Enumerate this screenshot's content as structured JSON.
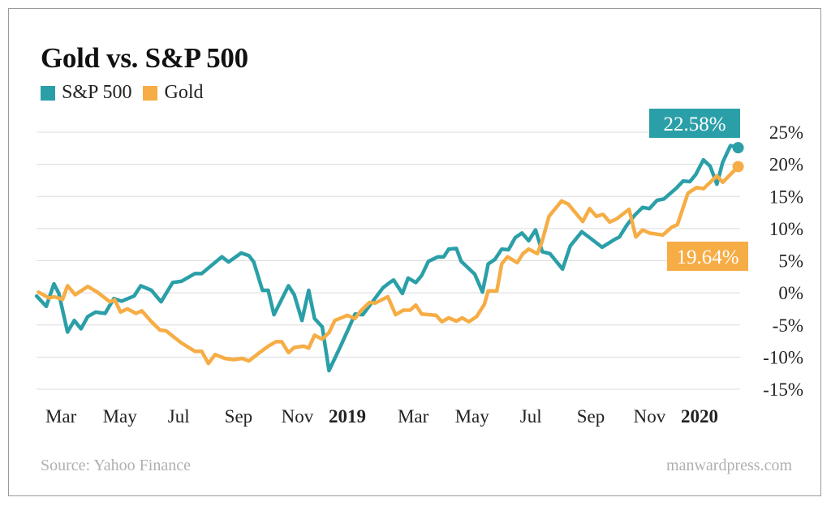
{
  "chart_data": {
    "type": "line",
    "title": "Gold vs. S&P 500",
    "xlabel": "",
    "ylabel": "",
    "ylim": [
      -15,
      25
    ],
    "yticks": [
      25,
      20,
      15,
      10,
      5,
      0,
      -5,
      -10,
      -15
    ],
    "ytick_format": "%",
    "grid": true,
    "legend": "top-left",
    "xticks": [
      {
        "date": "2018-03-01",
        "label": "Mar",
        "bold": false
      },
      {
        "date": "2018-05-01",
        "label": "May",
        "bold": false
      },
      {
        "date": "2018-07-01",
        "label": "Jul",
        "bold": false
      },
      {
        "date": "2018-09-01",
        "label": "Sep",
        "bold": false
      },
      {
        "date": "2018-11-01",
        "label": "Nov",
        "bold": false
      },
      {
        "date": "2019-01-01",
        "label": "2019",
        "bold": true
      },
      {
        "date": "2019-03-01",
        "label": "Mar",
        "bold": false
      },
      {
        "date": "2019-05-01",
        "label": "May",
        "bold": false
      },
      {
        "date": "2019-07-01",
        "label": "Jul",
        "bold": false
      },
      {
        "date": "2019-09-01",
        "label": "Sep",
        "bold": false
      },
      {
        "date": "2019-11-01",
        "label": "Nov",
        "bold": false
      },
      {
        "date": "2020-01-01",
        "label": "2020",
        "bold": true
      }
    ],
    "xlim": [
      "2018-02-13",
      "2020-02-12"
    ],
    "series": [
      {
        "name": "S&P 500",
        "color": "#2b9fa8",
        "end_label": "22.58%",
        "points": [
          [
            "2018-02-13",
            -0.5
          ],
          [
            "2018-02-23",
            -2.1
          ],
          [
            "2018-03-03",
            1.4
          ],
          [
            "2018-03-08",
            -0.1
          ],
          [
            "2018-03-17",
            -6.1
          ],
          [
            "2018-03-24",
            -4.3
          ],
          [
            "2018-03-31",
            -5.6
          ],
          [
            "2018-04-07",
            -3.7
          ],
          [
            "2018-04-15",
            -3.0
          ],
          [
            "2018-04-25",
            -3.2
          ],
          [
            "2018-05-04",
            -0.9
          ],
          [
            "2018-05-12",
            -1.3
          ],
          [
            "2018-05-25",
            -0.5
          ],
          [
            "2018-06-01",
            1.1
          ],
          [
            "2018-06-12",
            0.4
          ],
          [
            "2018-06-22",
            -1.4
          ],
          [
            "2018-07-04",
            1.6
          ],
          [
            "2018-07-13",
            1.8
          ],
          [
            "2018-07-27",
            3.0
          ],
          [
            "2018-08-03",
            3.0
          ],
          [
            "2018-08-24",
            5.6
          ],
          [
            "2018-08-31",
            4.8
          ],
          [
            "2018-09-13",
            6.2
          ],
          [
            "2018-09-21",
            5.8
          ],
          [
            "2018-09-26",
            4.8
          ],
          [
            "2018-10-05",
            0.4
          ],
          [
            "2018-10-11",
            0.4
          ],
          [
            "2018-10-17",
            -3.4
          ],
          [
            "2018-11-01",
            1.1
          ],
          [
            "2018-11-07",
            -0.3
          ],
          [
            "2018-11-15",
            -4.3
          ],
          [
            "2018-11-22",
            0.4
          ],
          [
            "2018-11-28",
            -4.0
          ],
          [
            "2018-12-06",
            -5.3
          ],
          [
            "2018-12-13",
            -12.1
          ],
          [
            "2018-12-25",
            -8.3
          ],
          [
            "2019-01-09",
            -3.3
          ],
          [
            "2019-01-17",
            -3.4
          ],
          [
            "2019-01-24",
            -2.0
          ],
          [
            "2019-02-07",
            0.8
          ],
          [
            "2019-02-14",
            1.6
          ],
          [
            "2019-02-18",
            2.0
          ],
          [
            "2019-02-27",
            -0.1
          ],
          [
            "2019-03-05",
            2.3
          ],
          [
            "2019-03-13",
            1.6
          ],
          [
            "2019-03-19",
            2.7
          ],
          [
            "2019-03-26",
            4.9
          ],
          [
            "2019-04-05",
            5.6
          ],
          [
            "2019-04-11",
            5.6
          ],
          [
            "2019-04-16",
            6.8
          ],
          [
            "2019-04-24",
            6.9
          ],
          [
            "2019-04-29",
            4.9
          ],
          [
            "2019-05-13",
            2.9
          ],
          [
            "2019-05-21",
            0.1
          ],
          [
            "2019-05-27",
            4.5
          ],
          [
            "2019-06-03",
            5.2
          ],
          [
            "2019-06-10",
            6.8
          ],
          [
            "2019-06-17",
            6.7
          ],
          [
            "2019-06-24",
            8.6
          ],
          [
            "2019-07-01",
            9.3
          ],
          [
            "2019-07-08",
            8.1
          ],
          [
            "2019-07-15",
            9.8
          ],
          [
            "2019-07-22",
            6.4
          ],
          [
            "2019-07-30",
            6.1
          ],
          [
            "2019-08-12",
            3.7
          ],
          [
            "2019-08-20",
            7.3
          ],
          [
            "2019-09-01",
            9.5
          ],
          [
            "2019-09-09",
            8.6
          ],
          [
            "2019-09-22",
            7.1
          ],
          [
            "2019-10-05",
            8.3
          ],
          [
            "2019-10-10",
            8.7
          ],
          [
            "2019-10-18",
            10.6
          ],
          [
            "2019-10-26",
            12.1
          ],
          [
            "2019-11-03",
            13.3
          ],
          [
            "2019-11-10",
            13.1
          ],
          [
            "2019-11-18",
            14.4
          ],
          [
            "2019-11-25",
            14.6
          ],
          [
            "2019-12-08",
            16.3
          ],
          [
            "2019-12-15",
            17.4
          ],
          [
            "2019-12-22",
            17.3
          ],
          [
            "2019-12-28",
            18.4
          ],
          [
            "2020-01-05",
            20.7
          ],
          [
            "2020-01-12",
            19.7
          ],
          [
            "2020-01-19",
            16.9
          ],
          [
            "2020-01-25",
            20.3
          ],
          [
            "2020-02-02",
            22.9
          ],
          [
            "2020-02-10",
            22.58
          ]
        ]
      },
      {
        "name": "Gold",
        "color": "#f6ad45",
        "end_label": "19.64%",
        "points": [
          [
            "2018-02-15",
            0.1
          ],
          [
            "2018-02-26",
            -0.8
          ],
          [
            "2018-03-03",
            -0.6
          ],
          [
            "2018-03-12",
            -1.0
          ],
          [
            "2018-03-17",
            1.1
          ],
          [
            "2018-03-25",
            -0.3
          ],
          [
            "2018-04-07",
            1.0
          ],
          [
            "2018-04-17",
            0.1
          ],
          [
            "2018-04-30",
            -1.4
          ],
          [
            "2018-05-05",
            -1.1
          ],
          [
            "2018-05-11",
            -3.0
          ],
          [
            "2018-05-18",
            -2.5
          ],
          [
            "2018-05-27",
            -3.2
          ],
          [
            "2018-06-02",
            -2.8
          ],
          [
            "2018-06-12",
            -4.5
          ],
          [
            "2018-06-21",
            -5.8
          ],
          [
            "2018-06-27",
            -5.9
          ],
          [
            "2018-07-13",
            -7.8
          ],
          [
            "2018-07-27",
            -9.1
          ],
          [
            "2018-08-03",
            -9.1
          ],
          [
            "2018-08-10",
            -11.0
          ],
          [
            "2018-08-17",
            -9.6
          ],
          [
            "2018-08-27",
            -10.2
          ],
          [
            "2018-09-05",
            -10.4
          ],
          [
            "2018-09-14",
            -10.2
          ],
          [
            "2018-09-21",
            -10.6
          ],
          [
            "2018-10-02",
            -9.3
          ],
          [
            "2018-10-11",
            -8.3
          ],
          [
            "2018-10-19",
            -7.6
          ],
          [
            "2018-10-25",
            -7.6
          ],
          [
            "2018-11-01",
            -9.3
          ],
          [
            "2018-11-07",
            -8.5
          ],
          [
            "2018-11-17",
            -8.3
          ],
          [
            "2018-11-22",
            -8.6
          ],
          [
            "2018-11-28",
            -6.6
          ],
          [
            "2018-12-06",
            -7.2
          ],
          [
            "2018-12-13",
            -6.2
          ],
          [
            "2018-12-19",
            -4.3
          ],
          [
            "2019-01-01",
            -3.5
          ],
          [
            "2019-01-09",
            -4.0
          ],
          [
            "2019-01-15",
            -2.8
          ],
          [
            "2019-01-24",
            -1.5
          ],
          [
            "2019-01-30",
            -1.6
          ],
          [
            "2019-02-12",
            -0.6
          ],
          [
            "2019-02-20",
            -3.4
          ],
          [
            "2019-02-28",
            -2.7
          ],
          [
            "2019-03-07",
            -2.7
          ],
          [
            "2019-03-13",
            -1.9
          ],
          [
            "2019-03-19",
            -3.3
          ],
          [
            "2019-04-03",
            -3.5
          ],
          [
            "2019-04-09",
            -4.5
          ],
          [
            "2019-04-16",
            -3.9
          ],
          [
            "2019-04-24",
            -4.4
          ],
          [
            "2019-04-30",
            -3.9
          ],
          [
            "2019-05-07",
            -4.5
          ],
          [
            "2019-05-15",
            -3.7
          ],
          [
            "2019-05-23",
            -1.8
          ],
          [
            "2019-05-27",
            0.3
          ],
          [
            "2019-06-05",
            0.3
          ],
          [
            "2019-06-10",
            4.5
          ],
          [
            "2019-06-16",
            5.6
          ],
          [
            "2019-06-26",
            4.7
          ],
          [
            "2019-07-02",
            6.1
          ],
          [
            "2019-07-08",
            6.8
          ],
          [
            "2019-07-17",
            6.1
          ],
          [
            "2019-07-22",
            8.1
          ],
          [
            "2019-07-29",
            11.9
          ],
          [
            "2019-08-11",
            14.3
          ],
          [
            "2019-08-18",
            13.8
          ],
          [
            "2019-09-02",
            11.1
          ],
          [
            "2019-09-09",
            13.1
          ],
          [
            "2019-09-16",
            11.9
          ],
          [
            "2019-09-23",
            12.2
          ],
          [
            "2019-09-30",
            11.0
          ],
          [
            "2019-10-07",
            11.5
          ],
          [
            "2019-10-20",
            13.0
          ],
          [
            "2019-10-27",
            8.7
          ],
          [
            "2019-11-03",
            9.8
          ],
          [
            "2019-11-10",
            9.3
          ],
          [
            "2019-11-24",
            9.0
          ],
          [
            "2019-12-03",
            10.2
          ],
          [
            "2019-12-09",
            10.6
          ],
          [
            "2019-12-20",
            15.5
          ],
          [
            "2019-12-29",
            16.4
          ],
          [
            "2020-01-05",
            16.2
          ],
          [
            "2020-01-19",
            18.2
          ],
          [
            "2020-01-25",
            17.2
          ],
          [
            "2020-02-10",
            19.64
          ]
        ]
      }
    ]
  },
  "footer": {
    "source": "Source: Yahoo Finance",
    "credit": "manwardpress.com"
  }
}
